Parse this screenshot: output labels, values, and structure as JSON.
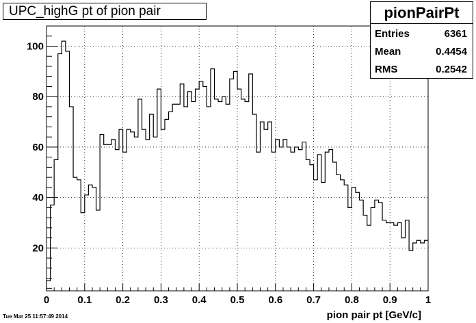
{
  "title": "UPC_highG pt of pion pair",
  "stats": {
    "name": "pionPairPt",
    "entries_label": "Entries",
    "entries_value": "6361",
    "mean_label": "Mean",
    "mean_value": "0.4454",
    "rms_label": "RMS",
    "rms_value": "0.2542"
  },
  "timestamp": "Tue Mar 25 11:57:49 2014",
  "chart_data": {
    "type": "bar",
    "title": "UPC_highG pt of pion pair",
    "xlabel": "pion pair pt [GeV/c]",
    "ylabel": "",
    "xlim": [
      0,
      1
    ],
    "ylim": [
      3,
      108
    ],
    "bin_width": 0.01,
    "grid": true,
    "x_ticks": [
      "0",
      "0.1",
      "0.2",
      "0.3",
      "0.4",
      "0.5",
      "0.6",
      "0.7",
      "0.8",
      "0.9",
      "1"
    ],
    "y_ticks": [
      "20",
      "40",
      "60",
      "80",
      "100"
    ],
    "values": [
      7,
      37,
      55,
      97,
      102,
      98,
      76,
      48,
      47,
      34,
      41,
      45,
      44,
      35,
      65,
      61,
      61,
      63,
      59,
      67,
      58,
      67,
      66,
      64,
      79,
      67,
      63,
      73,
      64,
      83,
      67,
      71,
      74,
      77,
      77,
      85,
      76,
      82,
      78,
      83,
      86,
      84,
      76,
      91,
      79,
      78,
      80,
      77,
      87,
      90,
      83,
      79,
      78,
      89,
      73,
      58,
      70,
      67,
      70,
      58,
      63,
      60,
      63,
      60,
      58,
      60,
      59,
      62,
      55,
      53,
      47,
      57,
      46,
      58,
      59,
      54,
      49,
      47,
      45,
      36,
      44,
      42,
      39,
      33,
      29,
      36,
      39,
      38,
      31,
      30,
      30,
      29,
      30,
      24,
      31,
      19,
      22,
      23,
      22,
      23
    ]
  }
}
